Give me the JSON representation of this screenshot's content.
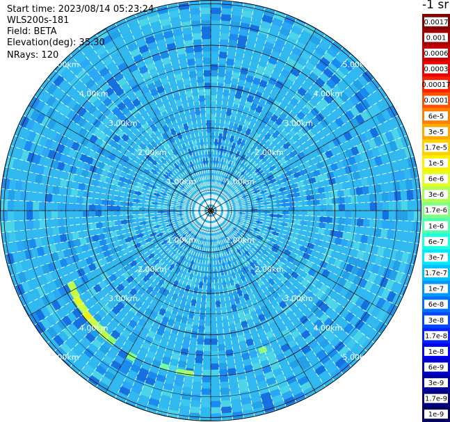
{
  "header": {
    "start_time": "Start time: 2023/08/14 05:23:24",
    "instrument": "WLS200s-181",
    "field": "Field: BETA",
    "elevation": "Elevation(deg): 35.30",
    "nrays": "NRays: 120"
  },
  "ppi": {
    "range_rings": [
      "1.00km",
      "2.00km",
      "3.00km",
      "4.00km",
      "5.00km"
    ],
    "colors": {
      "background": "#30b8f0",
      "grid": "#000000",
      "ray_gap": "#ffffff"
    }
  },
  "colorbar": {
    "unit_label": "-1 sr",
    "levels": [
      {
        "label": "0.0017",
        "color": "#800000"
      },
      {
        "label": "0.001",
        "color": "#a00000"
      },
      {
        "label": "0.0006",
        "color": "#c80000"
      },
      {
        "label": "0.0003",
        "color": "#e80000"
      },
      {
        "label": "0.00017",
        "color": "#ff2000"
      },
      {
        "label": "0.0001",
        "color": "#ff5000"
      },
      {
        "label": "6e-5",
        "color": "#ff8000"
      },
      {
        "label": "3e-5",
        "color": "#ffa800"
      },
      {
        "label": "1.7e-5",
        "color": "#ffd000"
      },
      {
        "label": "1e-5",
        "color": "#fff000"
      },
      {
        "label": "6e-6",
        "color": "#e0ff20"
      },
      {
        "label": "3e-6",
        "color": "#b0ff50"
      },
      {
        "label": "1.7e-6",
        "color": "#80ff80"
      },
      {
        "label": "1e-6",
        "color": "#50ffb0"
      },
      {
        "label": "6e-7",
        "color": "#20ffe0"
      },
      {
        "label": "3e-7",
        "color": "#00e8ff"
      },
      {
        "label": "1.7e-7",
        "color": "#00c0ff"
      },
      {
        "label": "1e-7",
        "color": "#0098ff"
      },
      {
        "label": "6e-8",
        "color": "#0070ff"
      },
      {
        "label": "3e-8",
        "color": "#0048ff"
      },
      {
        "label": "1.7e-8",
        "color": "#0020ff"
      },
      {
        "label": "1e-8",
        "color": "#0000f0"
      },
      {
        "label": "6e-9",
        "color": "#0000c8"
      },
      {
        "label": "3e-9",
        "color": "#0000a0"
      },
      {
        "label": "1.7e-9",
        "color": "#000080"
      },
      {
        "label": "1e-9",
        "color": "#000060"
      }
    ]
  }
}
